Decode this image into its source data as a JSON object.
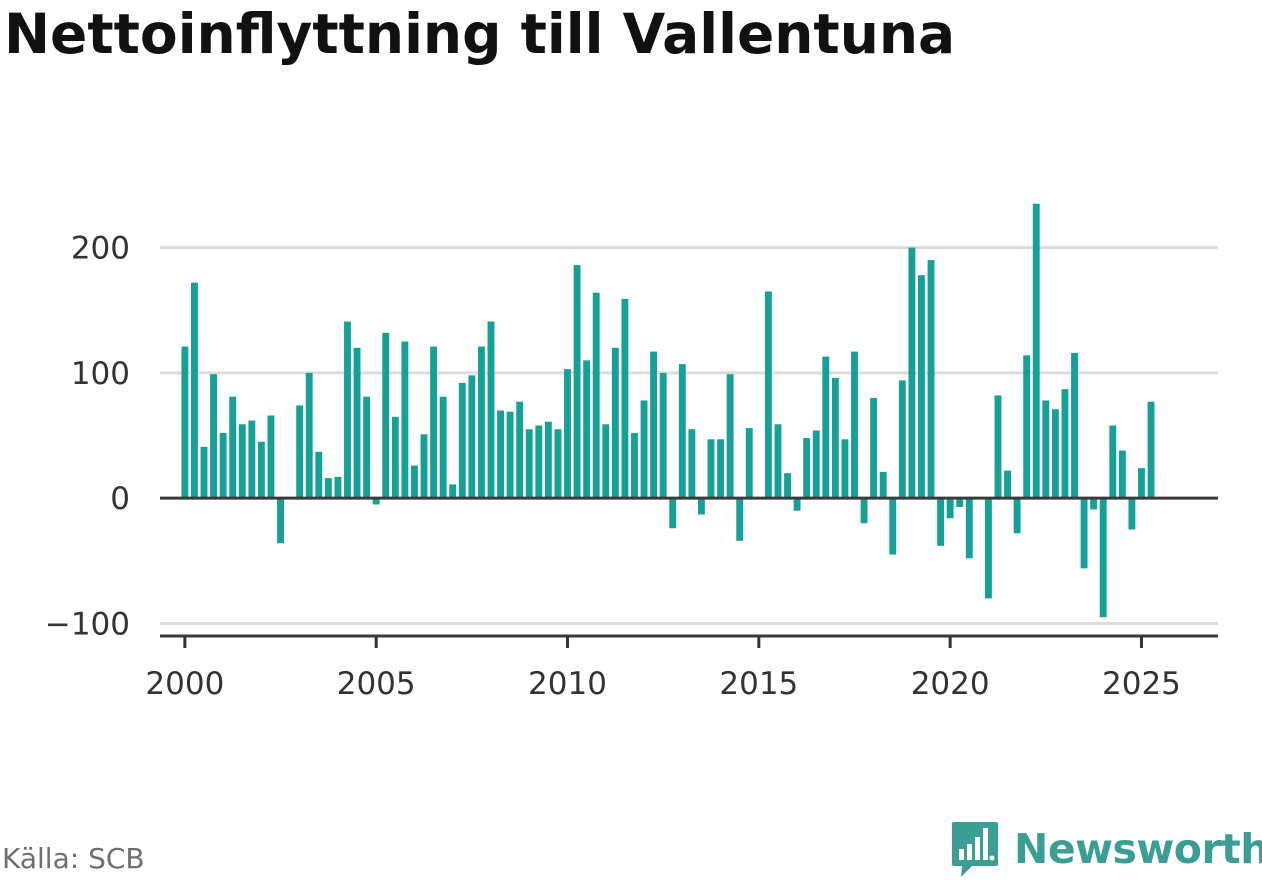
{
  "colors": {
    "bar": "#17a097",
    "grid": "#dcdcdc",
    "baseline": "#3a3a3a",
    "axis": "#333333",
    "brand": "#3a9e94"
  },
  "source_text": "Källa: SCB",
  "brand_name": "Newsworthy",
  "brand_icon": "newsworthy-logo-icon",
  "chart_data": {
    "type": "bar",
    "title": "Nettoinflyttning till Vallentuna",
    "xlabel": "",
    "ylabel": "",
    "x_start": "2000-Q1",
    "x_step": "quarter",
    "xlim": [
      1999.35,
      2027.0
    ],
    "ylim": [
      -110,
      230
    ],
    "yticks": [
      -100,
      0,
      100,
      200
    ],
    "ytick_labels": [
      "−100",
      "0",
      "100",
      "200"
    ],
    "xticks": [
      2000,
      2005,
      2010,
      2015,
      2020,
      2025
    ],
    "xtick_labels": [
      "2000",
      "2005",
      "2010",
      "2015",
      "2020",
      "2025"
    ],
    "grid": true,
    "values": [
      121,
      172,
      41,
      99,
      52,
      81,
      59,
      62,
      45,
      66,
      -36,
      0,
      74,
      100,
      37,
      16,
      17,
      141,
      120,
      81,
      -5,
      132,
      65,
      125,
      26,
      51,
      121,
      81,
      11,
      92,
      98,
      121,
      141,
      70,
      69,
      77,
      55,
      58,
      61,
      55,
      103,
      186,
      110,
      164,
      59,
      120,
      159,
      52,
      78,
      117,
      100,
      -24,
      107,
      55,
      -13,
      47,
      47,
      99,
      -34,
      56,
      0,
      165,
      59,
      20,
      -10,
      48,
      54,
      113,
      96,
      47,
      117,
      -20,
      80,
      21,
      -45,
      94,
      200,
      178,
      190,
      -38,
      -16,
      -7,
      -48,
      0,
      -80,
      82,
      22,
      -28,
      114,
      235,
      78,
      71,
      87,
      116,
      -56,
      -9,
      -95,
      58,
      38,
      -25,
      24,
      77
    ]
  }
}
